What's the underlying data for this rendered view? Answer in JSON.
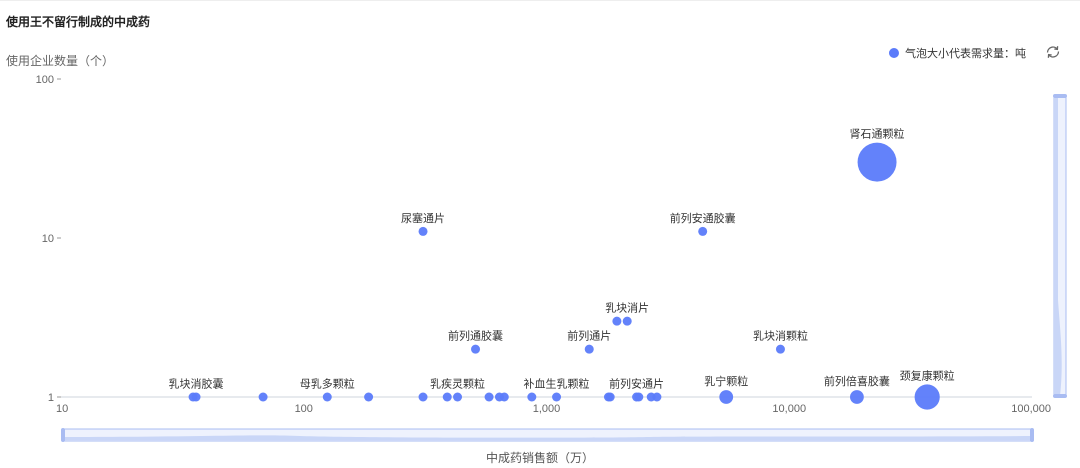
{
  "header": {
    "title": "使用王不留行制成的中成药",
    "legend_text": "气泡大小代表需求量：吨",
    "refresh_icon": "refresh-icon"
  },
  "colors": {
    "bubble": "#5b7bfa",
    "axis": "#cfd4dc",
    "slider_fill": "#dfe7fb",
    "slider_stroke": "#a9bcf2"
  },
  "chart_data": {
    "type": "scatter",
    "title": "使用王不留行制成的中成药",
    "xlabel": "中成药销售额（万）",
    "ylabel": "使用企业数量（个）",
    "x_scale": "log",
    "y_scale": "log",
    "xlim": [
      10,
      100000
    ],
    "ylim": [
      1,
      100
    ],
    "x_ticks": [
      "10",
      "100",
      "1,000",
      "10,000",
      "100,000"
    ],
    "y_ticks": [
      "1",
      "10",
      "100"
    ],
    "bubble_legend": "气泡大小代表需求量：吨",
    "points": [
      {
        "x": 35,
        "y": 1,
        "size": 1,
        "label": ""
      },
      {
        "x": 36,
        "y": 1,
        "size": 1,
        "label": "乳块消胶囊"
      },
      {
        "x": 68,
        "y": 1,
        "size": 1,
        "label": ""
      },
      {
        "x": 125,
        "y": 1,
        "size": 1,
        "label": "母乳多颗粒"
      },
      {
        "x": 185,
        "y": 1,
        "size": 1,
        "label": ""
      },
      {
        "x": 310,
        "y": 1,
        "size": 1,
        "label": ""
      },
      {
        "x": 390,
        "y": 1,
        "size": 1,
        "label": ""
      },
      {
        "x": 430,
        "y": 1,
        "size": 1,
        "label": "乳疾灵颗粒"
      },
      {
        "x": 580,
        "y": 1,
        "size": 1,
        "label": ""
      },
      {
        "x": 640,
        "y": 1,
        "size": 1,
        "label": ""
      },
      {
        "x": 670,
        "y": 1,
        "size": 1,
        "label": ""
      },
      {
        "x": 870,
        "y": 1,
        "size": 1,
        "label": ""
      },
      {
        "x": 1100,
        "y": 1,
        "size": 1,
        "label": "补血生乳颗粒"
      },
      {
        "x": 1800,
        "y": 1,
        "size": 1,
        "label": ""
      },
      {
        "x": 1830,
        "y": 1,
        "size": 1,
        "label": ""
      },
      {
        "x": 2350,
        "y": 1,
        "size": 1,
        "label": "前列安通片"
      },
      {
        "x": 2400,
        "y": 1,
        "size": 1,
        "label": ""
      },
      {
        "x": 2700,
        "y": 1,
        "size": 1,
        "label": ""
      },
      {
        "x": 2850,
        "y": 1,
        "size": 1,
        "label": ""
      },
      {
        "x": 5500,
        "y": 1,
        "size": 1.5,
        "label": "乳宁颗粒"
      },
      {
        "x": 19000,
        "y": 1,
        "size": 1.5,
        "label": "前列倍喜胶囊"
      },
      {
        "x": 37000,
        "y": 1,
        "size": 5,
        "label": "颈复康颗粒"
      },
      {
        "x": 510,
        "y": 2,
        "size": 1,
        "label": "前列通胶囊"
      },
      {
        "x": 1500,
        "y": 2,
        "size": 1,
        "label": "前列通片"
      },
      {
        "x": 9200,
        "y": 2,
        "size": 1,
        "label": "乳块消颗粒"
      },
      {
        "x": 1950,
        "y": 3,
        "size": 1,
        "label": ""
      },
      {
        "x": 2150,
        "y": 3,
        "size": 1,
        "label": "乳块消片"
      },
      {
        "x": 310,
        "y": 11,
        "size": 1,
        "label": "尿塞通片"
      },
      {
        "x": 4400,
        "y": 11,
        "size": 1,
        "label": "前列安通胶囊"
      },
      {
        "x": 23000,
        "y": 30,
        "size": 12,
        "label": "肾石通颗粒"
      }
    ]
  }
}
